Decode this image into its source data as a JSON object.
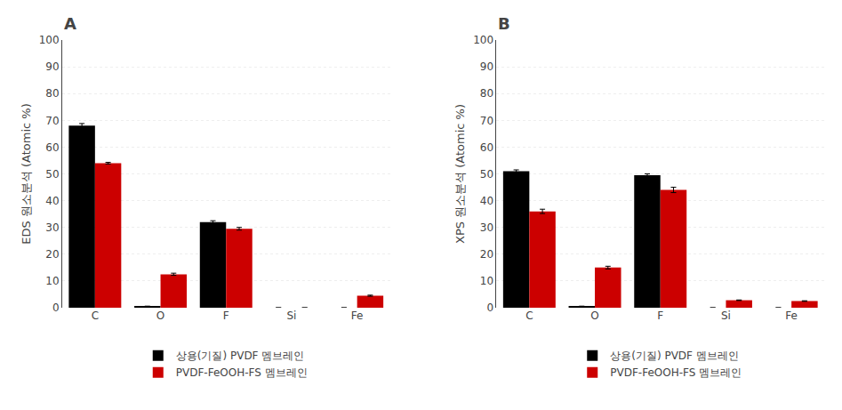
{
  "chart_data": [
    {
      "type": "bar",
      "title": "A",
      "categories": [
        "C",
        "O",
        "F",
        "Si",
        "Fe"
      ],
      "ylabel": "EDS 원소분석 (Atomic %)",
      "series": [
        {
          "name": "상용(기질) PVDF 멤브레인",
          "color": "#000000",
          "values": [
            68.0,
            0.5,
            32.0,
            0.0,
            0.0
          ],
          "errors": [
            0.8,
            0.1,
            0.5,
            0.0,
            0.0
          ]
        },
        {
          "name": "PVDF-FeOOH-FS 멤브레인",
          "color": "#cc0000",
          "values": [
            54.0,
            12.5,
            29.5,
            0.0,
            4.5
          ],
          "errors": [
            0.3,
            0.4,
            0.5,
            0.0,
            0.2
          ]
        }
      ],
      "ylim": [
        0,
        100
      ],
      "yticks": [
        0,
        10,
        20,
        30,
        40,
        50,
        60,
        70,
        80,
        90,
        100
      ],
      "grid": true,
      "legend": "bottom"
    },
    {
      "type": "bar",
      "title": "B",
      "categories": [
        "C",
        "O",
        "F",
        "Si",
        "Fe"
      ],
      "ylabel": "XPS 원소분석 (Atomic %)",
      "series": [
        {
          "name": "상용(기질) PVDF 멤브레인",
          "color": "#000000",
          "values": [
            51.0,
            0.5,
            49.5,
            0.0,
            0.0
          ],
          "errors": [
            0.5,
            0.1,
            0.5,
            0.0,
            0.0
          ]
        },
        {
          "name": "PVDF-FeOOH-FS 멤브레인",
          "color": "#cc0000",
          "values": [
            36.0,
            15.0,
            44.0,
            2.8,
            2.5
          ],
          "errors": [
            0.8,
            0.5,
            1.0,
            0.1,
            0.1
          ]
        }
      ],
      "ylim": [
        0,
        100
      ],
      "yticks": [
        0,
        10,
        20,
        30,
        40,
        50,
        60,
        70,
        80,
        90,
        100
      ],
      "grid": true,
      "legend": "bottom"
    }
  ]
}
